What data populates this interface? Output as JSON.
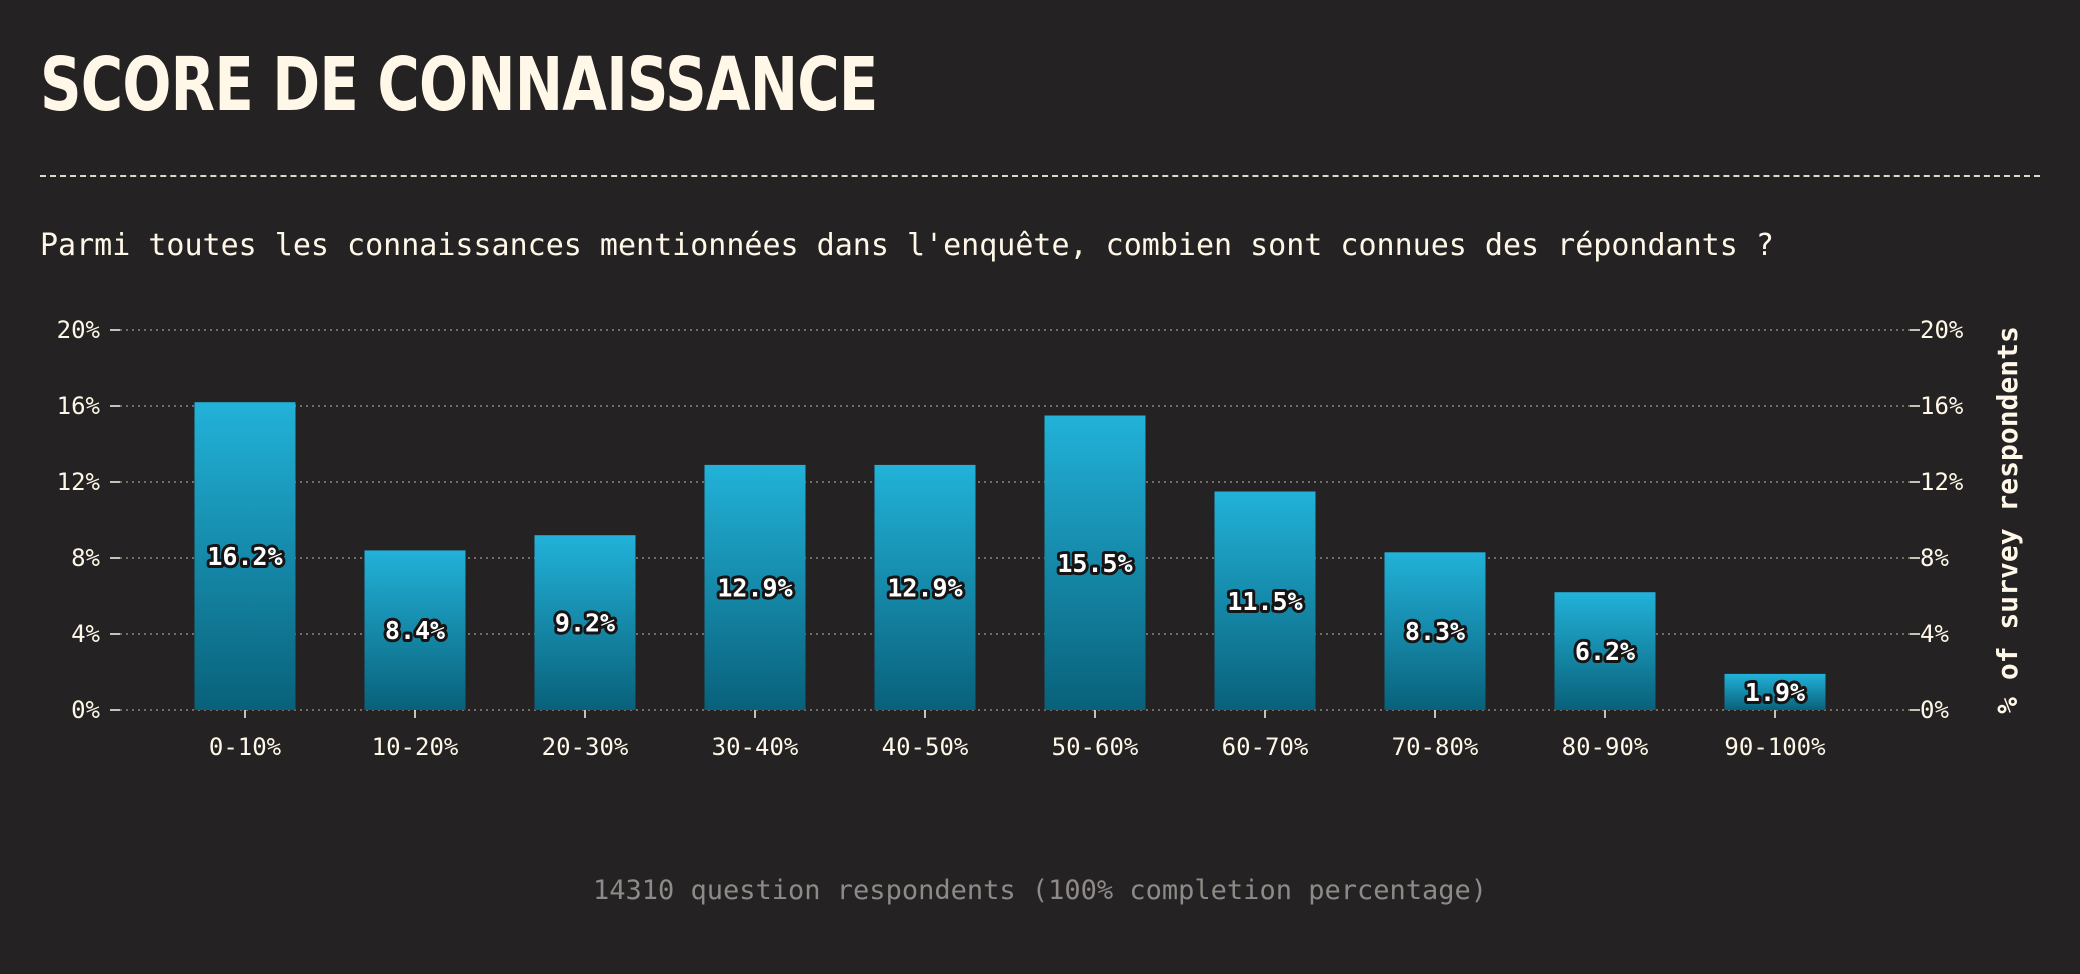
{
  "title": "SCORE DE CONNAISSANCE",
  "subtitle": "Parmi toutes les connaissances mentionnées dans l'enquête, combien sont connues des répondants ?",
  "footer": "14310 question respondents (100% completion percentage)",
  "colors": {
    "background": "#252223",
    "text": "#fff8e8",
    "bar_top": "#22b2d9",
    "bar_bottom": "#09617a",
    "grid": "#8a8684",
    "footer_text": "#8e8a87"
  },
  "chart_data": {
    "type": "bar",
    "categories": [
      "0-10%",
      "10-20%",
      "20-30%",
      "30-40%",
      "40-50%",
      "50-60%",
      "60-70%",
      "70-80%",
      "80-90%",
      "90-100%"
    ],
    "values": [
      16.2,
      8.4,
      9.2,
      12.9,
      12.9,
      15.5,
      11.5,
      8.3,
      6.2,
      1.9
    ],
    "value_labels": [
      "16.2%",
      "8.4%",
      "9.2%",
      "12.9%",
      "12.9%",
      "15.5%",
      "11.5%",
      "8.3%",
      "6.2%",
      "1.9%"
    ],
    "ylim": [
      0,
      20
    ],
    "yticks": [
      0,
      4,
      8,
      12,
      16,
      20
    ],
    "ytick_labels": [
      "0%",
      "4%",
      "8%",
      "12%",
      "16%",
      "20%"
    ],
    "ylabel": "% of survey respondents",
    "xlabel": "",
    "grid": true,
    "y_axis_both_sides": true
  }
}
